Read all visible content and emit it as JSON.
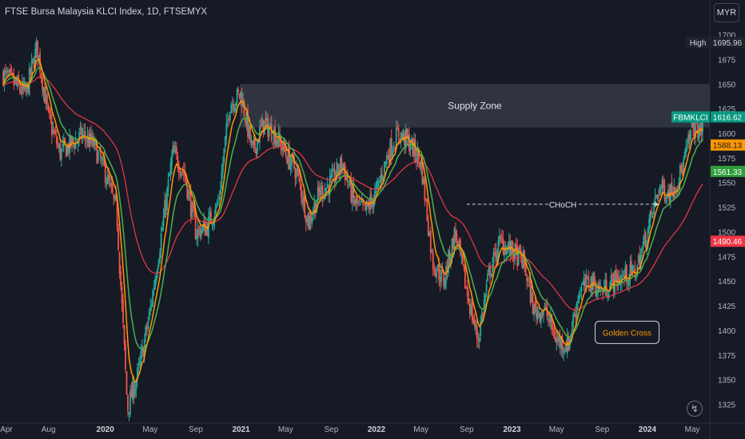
{
  "header": {
    "title": "FTSE Bursa Malaysia KLCI Index, 1D, FTSEMYX",
    "currency": "MYR"
  },
  "colors": {
    "background": "#161a25",
    "up": "#26a69a",
    "down": "#ef5350",
    "ema_fast": "#ff9800",
    "ema_mid": "#089981",
    "ema_slow": "#f23645",
    "ema_mid_line": "#4caf50",
    "zone": "#3a3e4a"
  },
  "chart_data": {
    "type": "candlestick",
    "title": "FTSE Bursa Malaysia KLCI Index, 1D, FTSEMYX",
    "y_axis": {
      "ticks": [
        1325,
        1350,
        1375,
        1400,
        1425,
        1450,
        1475,
        1500,
        1525,
        1550,
        1575,
        1600,
        1625,
        1650,
        1675,
        1700
      ],
      "side": "right",
      "unit": "MYR",
      "grid": false
    },
    "x_axis": {
      "ticks": [
        "Apr",
        "Aug",
        "2020",
        "May",
        "Sep",
        "2021",
        "May",
        "Sep",
        "2022",
        "May",
        "Sep",
        "2023",
        "May",
        "Sep",
        "2024",
        "May"
      ],
      "range": [
        "2019-04",
        "2024-05"
      ]
    },
    "price_path": [
      [
        "2019-04",
        1660
      ],
      [
        "2019-06",
        1640
      ],
      [
        "2019-07",
        1688
      ],
      [
        "2019-08",
        1615
      ],
      [
        "2019-09",
        1580
      ],
      [
        "2019-11",
        1598
      ],
      [
        "2019-12",
        1588
      ],
      [
        "2020-01",
        1560
      ],
      [
        "2020-02",
        1520
      ],
      [
        "2020-03",
        1320
      ],
      [
        "2020-04",
        1360
      ],
      [
        "2020-05",
        1420
      ],
      [
        "2020-06",
        1500
      ],
      [
        "2020-07",
        1580
      ],
      [
        "2020-08",
        1560
      ],
      [
        "2020-09",
        1500
      ],
      [
        "2020-10",
        1505
      ],
      [
        "2020-11",
        1530
      ],
      [
        "2020-12",
        1630
      ],
      [
        "2021-01",
        1640
      ],
      [
        "2021-02",
        1580
      ],
      [
        "2021-03",
        1610
      ],
      [
        "2021-04",
        1600
      ],
      [
        "2021-05",
        1580
      ],
      [
        "2021-06",
        1560
      ],
      [
        "2021-07",
        1510
      ],
      [
        "2021-08",
        1540
      ],
      [
        "2021-09",
        1550
      ],
      [
        "2021-10",
        1570
      ],
      [
        "2021-11",
        1530
      ],
      [
        "2021-12",
        1520
      ],
      [
        "2022-01",
        1540
      ],
      [
        "2022-02",
        1580
      ],
      [
        "2022-03",
        1600
      ],
      [
        "2022-04",
        1590
      ],
      [
        "2022-05",
        1570
      ],
      [
        "2022-06",
        1470
      ],
      [
        "2022-07",
        1450
      ],
      [
        "2022-08",
        1500
      ],
      [
        "2022-09",
        1440
      ],
      [
        "2022-10",
        1390
      ],
      [
        "2022-11",
        1460
      ],
      [
        "2022-12",
        1490
      ],
      [
        "2023-01",
        1480
      ],
      [
        "2023-02",
        1470
      ],
      [
        "2023-03",
        1420
      ],
      [
        "2023-04",
        1420
      ],
      [
        "2023-05",
        1390
      ],
      [
        "2023-06",
        1385
      ],
      [
        "2023-07",
        1440
      ],
      [
        "2023-08",
        1450
      ],
      [
        "2023-09",
        1440
      ],
      [
        "2023-10",
        1450
      ],
      [
        "2023-11",
        1455
      ],
      [
        "2023-12",
        1460
      ],
      [
        "2024-01",
        1500
      ],
      [
        "2024-02",
        1545
      ],
      [
        "2024-03",
        1540
      ],
      [
        "2024-04",
        1560
      ],
      [
        "2024-05",
        1605
      ]
    ],
    "emas": [
      {
        "name": "",
        "color": "#ff9800",
        "period": 20,
        "last": 1588.13
      },
      {
        "name": "",
        "color": "#4caf50",
        "period": 50,
        "last": 1561.33
      },
      {
        "name": "",
        "color": "#f23645",
        "period": 200,
        "last": 1490.46
      }
    ],
    "supply_zone": {
      "label": "Supply Zone",
      "top": 1650,
      "bottom": 1606
    },
    "choch": {
      "label": "CHoCH",
      "price": 1528,
      "from": "2022-09",
      "to": "2024-02"
    },
    "golden_cross": {
      "label": "Golden Cross",
      "date": "2023-07",
      "price": 1398
    },
    "price_labels": {
      "high": {
        "tag": "High",
        "value": "1695.96"
      },
      "symbol": {
        "tag": "FBMKLCI",
        "value": "1616.62"
      },
      "ema_fast": {
        "value": "1588.13"
      },
      "ema_mid": {
        "value": "1561.33"
      },
      "ema_slow": {
        "value": "1490.46"
      }
    },
    "last_price": 1616.62
  }
}
